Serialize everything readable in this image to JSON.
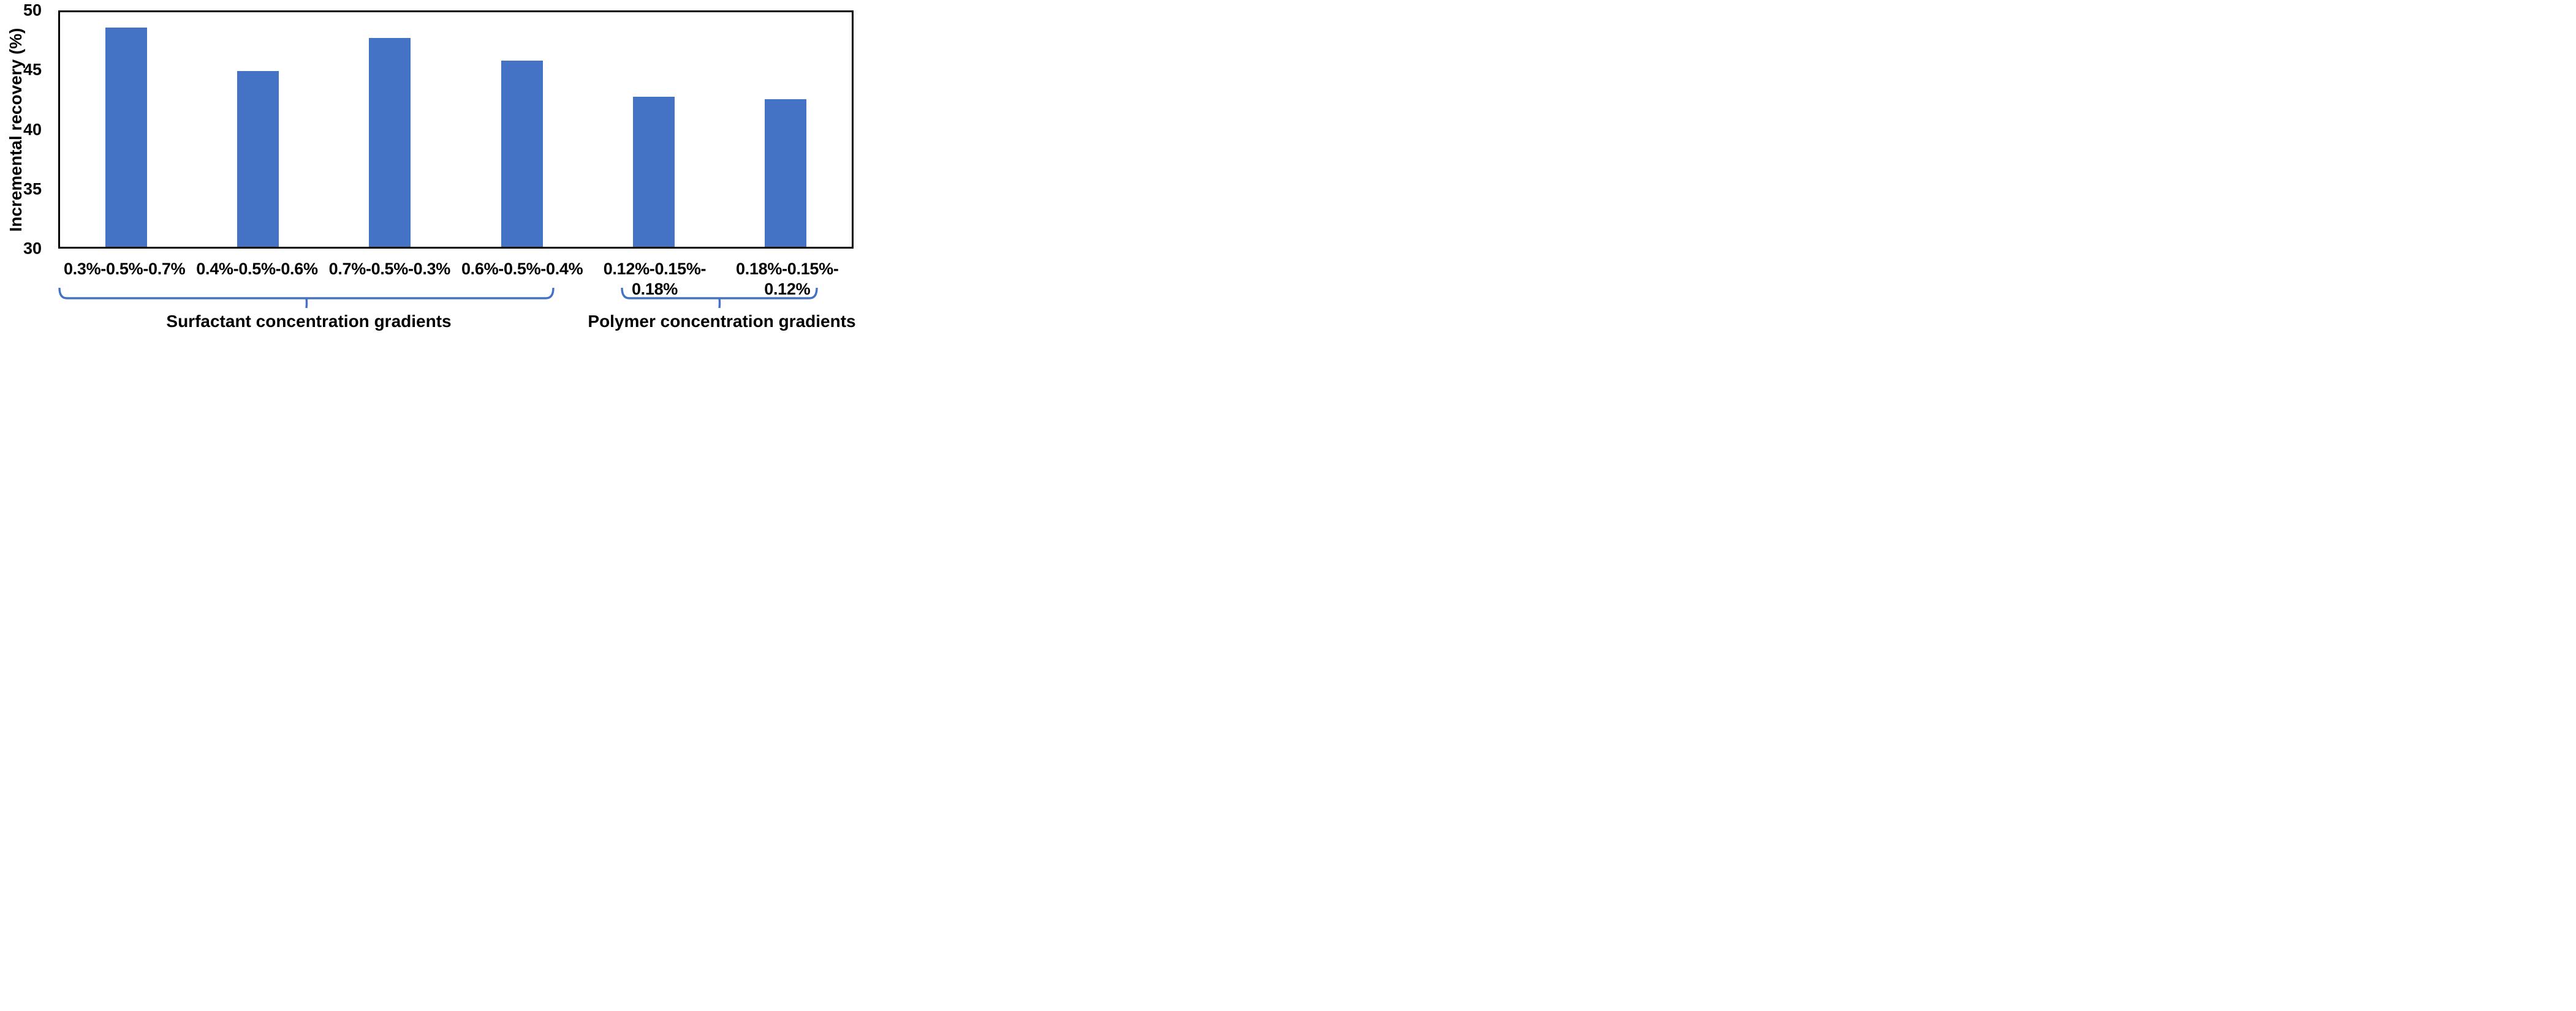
{
  "page": {
    "background_color": "#FFFFFF"
  },
  "chart_data": {
    "type": "bar",
    "title": "",
    "ylabel": "Incremental recovery (%)",
    "xlabel": "",
    "ylim": [
      30,
      50
    ],
    "yticks": [
      30,
      35,
      40,
      45,
      50
    ],
    "grid": false,
    "legend": "none",
    "plot_border": true,
    "bar_color": "#4472C4",
    "axis_color": "#000000",
    "text_color": "#000000",
    "brace_color": "#4472C4",
    "categories": [
      "0.3%-0.5%-0.7%",
      "0.4%-0.5%-0.6%",
      "0.7%-0.5%-0.3%",
      "0.6%-0.5%-0.4%",
      "0.12%-0.15%-\n0.18%",
      "0.18%-0.15%-\n0.12%"
    ],
    "values": [
      48.7,
      45.0,
      47.8,
      45.9,
      42.8,
      42.6
    ],
    "groups": [
      {
        "label": "Surfactant concentration gradients",
        "start_index": 0,
        "end_index": 3
      },
      {
        "label": "Polymer concentration gradients",
        "start_index": 4,
        "end_index": 5
      }
    ]
  }
}
